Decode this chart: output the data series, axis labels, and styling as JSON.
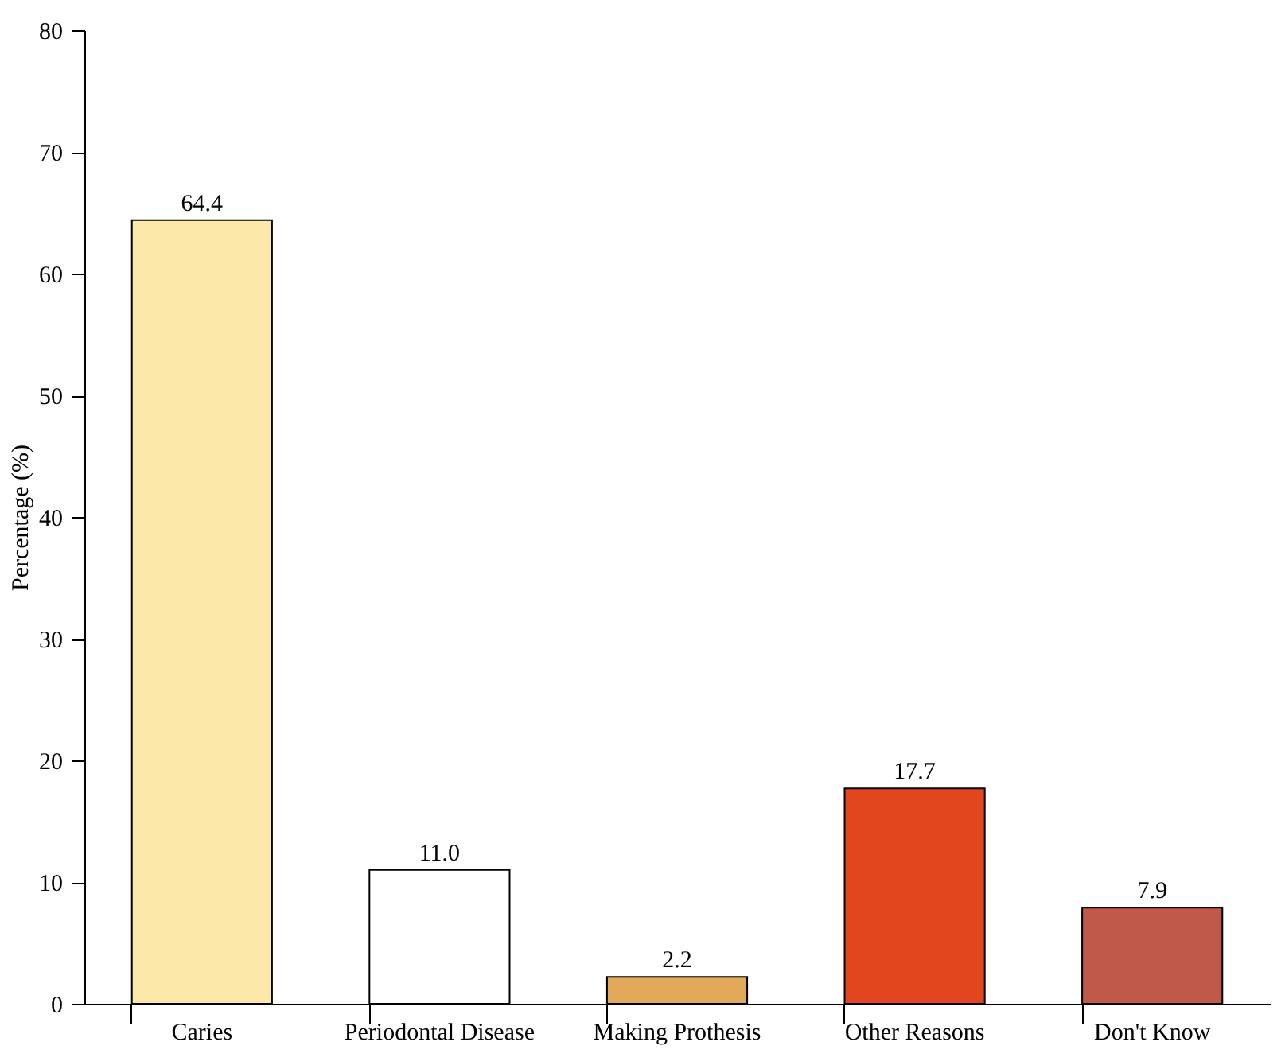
{
  "chart_data": {
    "type": "bar",
    "ylabel": "Percentage (%)",
    "categories": [
      "Caries",
      "Periodontal Disease",
      "Making Prothesis",
      "Other Reasons",
      "Don't Know"
    ],
    "values": [
      64.4,
      11.0,
      2.2,
      17.7,
      7.9
    ],
    "value_labels": [
      "64.4",
      "11.0",
      "2.2",
      "17.7",
      "7.9"
    ],
    "colors": [
      "#fce9a9",
      "#ffffff",
      "#e3a95a",
      "#e2461f",
      "#c0594a"
    ],
    "ylim": [
      0,
      80
    ],
    "yticks": [
      0,
      10,
      20,
      30,
      40,
      50,
      60,
      70,
      80
    ],
    "grid": false,
    "legend": false
  }
}
